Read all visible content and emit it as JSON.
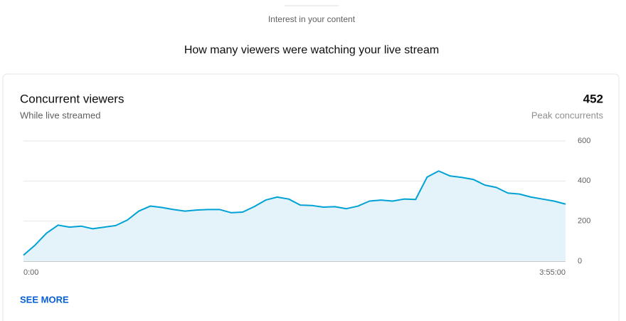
{
  "header": {
    "section": "Interest in your content",
    "heading": "How many viewers were watching your live stream"
  },
  "card": {
    "title": "Concurrent viewers",
    "subtitle": "While live streamed",
    "peak_value": "452",
    "peak_label": "Peak concurrents",
    "link": "SEE MORE"
  },
  "chart_data": {
    "type": "area",
    "x": [
      0,
      5,
      10,
      15,
      20,
      25,
      30,
      35,
      40,
      45,
      50,
      55,
      60,
      65,
      70,
      75,
      80,
      85,
      90,
      95,
      100,
      105,
      110,
      115,
      120,
      125,
      130,
      135,
      140,
      145,
      150,
      155,
      160,
      165,
      170,
      175,
      180,
      185,
      190,
      195,
      200,
      205,
      210,
      215,
      220,
      225,
      230,
      235
    ],
    "values": [
      30,
      80,
      140,
      180,
      170,
      175,
      162,
      170,
      178,
      205,
      250,
      275,
      268,
      258,
      250,
      255,
      258,
      258,
      242,
      245,
      272,
      305,
      320,
      310,
      280,
      278,
      270,
      272,
      262,
      275,
      300,
      305,
      300,
      310,
      308,
      420,
      450,
      425,
      418,
      408,
      380,
      368,
      340,
      335,
      320,
      310,
      300,
      285
    ],
    "xlim": [
      0,
      235
    ],
    "xticks": [
      {
        "value": 0,
        "label": "0:00"
      },
      {
        "value": 235,
        "label": "3:55:00"
      }
    ],
    "ylim": [
      0,
      600
    ],
    "yticks": [
      0,
      200,
      400,
      600
    ],
    "grid": true,
    "color": "#00a2d6",
    "area_color": "#e3f3f9"
  }
}
